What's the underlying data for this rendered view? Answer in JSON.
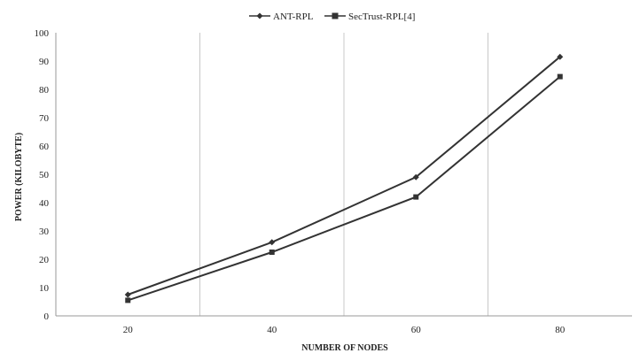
{
  "chart_data": {
    "type": "line",
    "categories": [
      "20",
      "40",
      "60",
      "80"
    ],
    "series": [
      {
        "name": "ANT-RPL",
        "values": [
          7.5,
          26,
          49,
          91.5
        ],
        "marker": "diamond",
        "color": "#333333"
      },
      {
        "name": "SecTrust-RPL[4]",
        "values": [
          5.5,
          22.5,
          42,
          84.5
        ],
        "marker": "square",
        "color": "#333333"
      }
    ],
    "xlabel": "NUMBER OF NODES",
    "ylabel": "POWER (KILOBYTE)",
    "ylim": [
      0,
      100
    ],
    "yticks": [
      "0",
      "10",
      "20",
      "30",
      "40",
      "50",
      "60",
      "70",
      "80",
      "90",
      "100"
    ],
    "grid": "vertical lines between categories",
    "legend": "top-center"
  }
}
